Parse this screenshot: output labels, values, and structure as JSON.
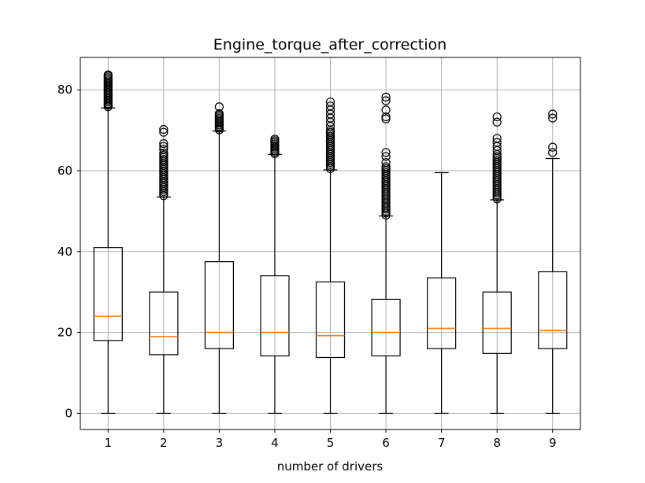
{
  "chart_data": {
    "type": "box",
    "title": "Engine_torque_after_correction",
    "xlabel": "number of drivers",
    "ylabel": "",
    "categories": [
      "1",
      "2",
      "3",
      "4",
      "5",
      "6",
      "7",
      "8",
      "9"
    ],
    "yticks": [
      "0",
      "20",
      "40",
      "60",
      "80"
    ],
    "ylim": [
      -4,
      88
    ],
    "grid": true,
    "box_color": "#000000",
    "median_color": "#ff7f0e",
    "grid_color": "#b0b0b0",
    "boxes": [
      {
        "category": "1",
        "whisker_low": 0,
        "q1": 18.0,
        "median": 24.0,
        "q3": 41.0,
        "whisker_high": 75.5,
        "outliers": [
          75.8,
          76.2,
          76.6,
          77.0,
          77.4,
          77.8,
          78.2,
          78.6,
          79.0,
          79.4,
          79.8,
          80.2,
          80.6,
          81.0,
          81.4,
          81.8,
          82.2,
          82.6,
          83.0,
          83.4,
          83.7
        ]
      },
      {
        "category": "2",
        "whisker_low": 0,
        "q1": 14.5,
        "median": 19.0,
        "q3": 30.0,
        "whisker_high": 53.5,
        "outliers": [
          53.8,
          54.3,
          54.8,
          55.3,
          55.8,
          56.3,
          56.8,
          57.3,
          57.8,
          58.3,
          58.8,
          59.3,
          59.8,
          60.3,
          60.8,
          61.3,
          61.8,
          62.3,
          62.8,
          63.3,
          63.8,
          64.3,
          65.3,
          66.0,
          66.7,
          69.5,
          70.2
        ]
      },
      {
        "category": "3",
        "whisker_low": 0,
        "q1": 16.0,
        "median": 20.0,
        "q3": 37.5,
        "whisker_high": 69.8,
        "outliers": [
          70.1,
          70.5,
          70.9,
          71.3,
          71.7,
          72.1,
          72.5,
          72.9,
          73.3,
          73.7,
          74.1,
          75.8
        ]
      },
      {
        "category": "4",
        "whisker_low": 0,
        "q1": 14.2,
        "median": 20.0,
        "q3": 34.0,
        "whisker_high": 64.0,
        "outliers": [
          64.2,
          64.6,
          65.0,
          65.4,
          65.8,
          66.2,
          66.6,
          67.0,
          67.4,
          67.8
        ]
      },
      {
        "category": "5",
        "whisker_low": 0,
        "q1": 13.8,
        "median": 19.2,
        "q3": 32.5,
        "whisker_high": 60.2,
        "outliers": [
          60.5,
          61.0,
          61.5,
          62.0,
          62.5,
          63.0,
          63.5,
          64.0,
          64.5,
          65.0,
          65.5,
          66.0,
          66.5,
          67.0,
          67.5,
          68.0,
          68.5,
          69.0,
          69.5,
          70.0,
          71.0,
          72.0,
          73.0,
          74.0,
          75.0,
          76.0,
          77.0
        ]
      },
      {
        "category": "6",
        "whisker_low": 0,
        "q1": 14.2,
        "median": 20.0,
        "q3": 28.2,
        "whisker_high": 48.8,
        "outliers": [
          49.0,
          49.5,
          50.0,
          50.5,
          51.0,
          51.5,
          52.0,
          52.5,
          53.0,
          53.5,
          54.0,
          54.5,
          55.0,
          55.5,
          56.0,
          56.5,
          57.0,
          57.5,
          58.0,
          58.5,
          59.0,
          59.5,
          60.0,
          60.5,
          61.0,
          62.0,
          63.5,
          64.5,
          72.8,
          73.3,
          75.0,
          77.3,
          78.2
        ]
      },
      {
        "category": "7",
        "whisker_low": 0,
        "q1": 16.0,
        "median": 21.0,
        "q3": 33.5,
        "whisker_high": 59.5,
        "outliers": []
      },
      {
        "category": "8",
        "whisker_low": 0,
        "q1": 14.8,
        "median": 21.0,
        "q3": 30.0,
        "whisker_high": 52.8,
        "outliers": [
          53.0,
          53.5,
          54.0,
          54.5,
          55.0,
          55.5,
          56.0,
          56.5,
          57.0,
          57.5,
          58.0,
          58.5,
          59.0,
          59.5,
          60.0,
          60.5,
          61.0,
          61.5,
          62.0,
          62.5,
          63.0,
          63.5,
          64.0,
          65.0,
          66.0,
          67.0,
          68.0,
          72.0,
          73.3
        ]
      },
      {
        "category": "9",
        "whisker_low": 0,
        "q1": 16.0,
        "median": 20.5,
        "q3": 35.0,
        "whisker_high": 63.0,
        "outliers": [
          64.5,
          65.8,
          73.0,
          74.0
        ]
      }
    ]
  }
}
